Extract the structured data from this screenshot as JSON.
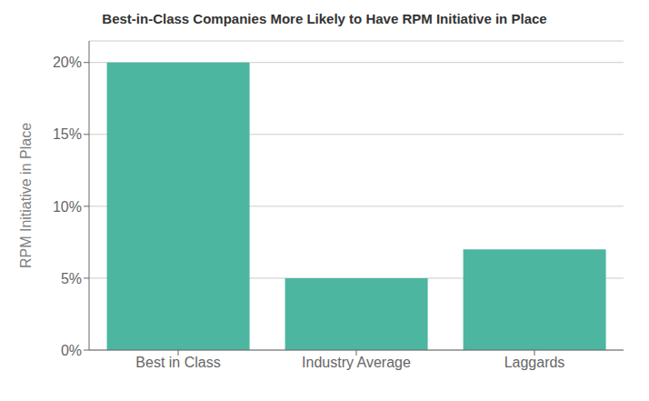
{
  "chart_data": {
    "type": "bar",
    "title": "Best-in-Class Companies More Likely to Have RPM Initiative in Place",
    "categories": [
      "Best in Class",
      "Industry Average",
      "Laggards"
    ],
    "values": [
      20,
      5,
      7
    ],
    "color": "#4db6a0",
    "ylabel": "RPM Initiative in Place",
    "ylim": [
      0,
      21.5
    ],
    "yticks": [
      {
        "value": 0,
        "label": "0%"
      },
      {
        "value": 5,
        "label": "5%"
      },
      {
        "value": 10,
        "label": "10%"
      },
      {
        "value": 15,
        "label": "15%"
      },
      {
        "value": 20,
        "label": "20%"
      }
    ],
    "grid": true
  }
}
